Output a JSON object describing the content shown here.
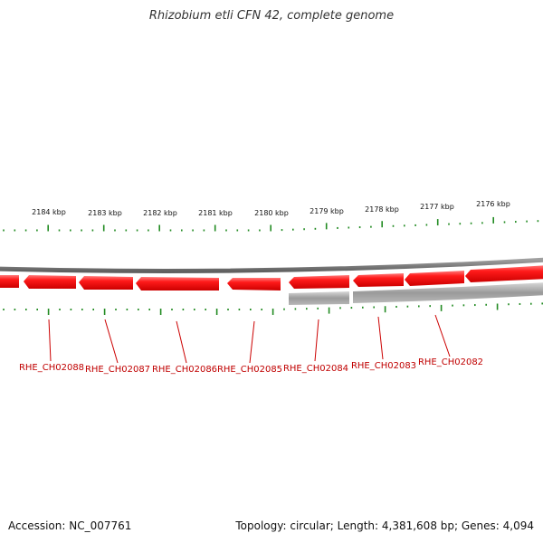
{
  "title": "Rhizobium etli CFN 42, complete genome",
  "footer": {
    "accession": "Accession: NC_007761",
    "topology": "Topology: circular; Length: 4,381,608 bp; Genes: 4,094"
  },
  "scale_labels": [
    "2184 kbp",
    "2183 kbp",
    "2182 kbp",
    "2181 kbp",
    "2180 kbp",
    "2179 kbp",
    "2178 kbp",
    "2177 kbp",
    "2176 kbp"
  ],
  "gene_labels": [
    "RHE_CH02088",
    "RHE_CH02087",
    "RHE_CH02086",
    "RHE_CH02085",
    "RHE_CH02084",
    "RHE_CH02083",
    "RHE_CH02082"
  ],
  "colors": {
    "gene": "#ee0000",
    "gene_highlight": "#ff6a6a",
    "backbone": "#808080",
    "secondary_feature": "#b0b0b0",
    "ticks": "#228b22",
    "label_line": "#cc0000"
  }
}
